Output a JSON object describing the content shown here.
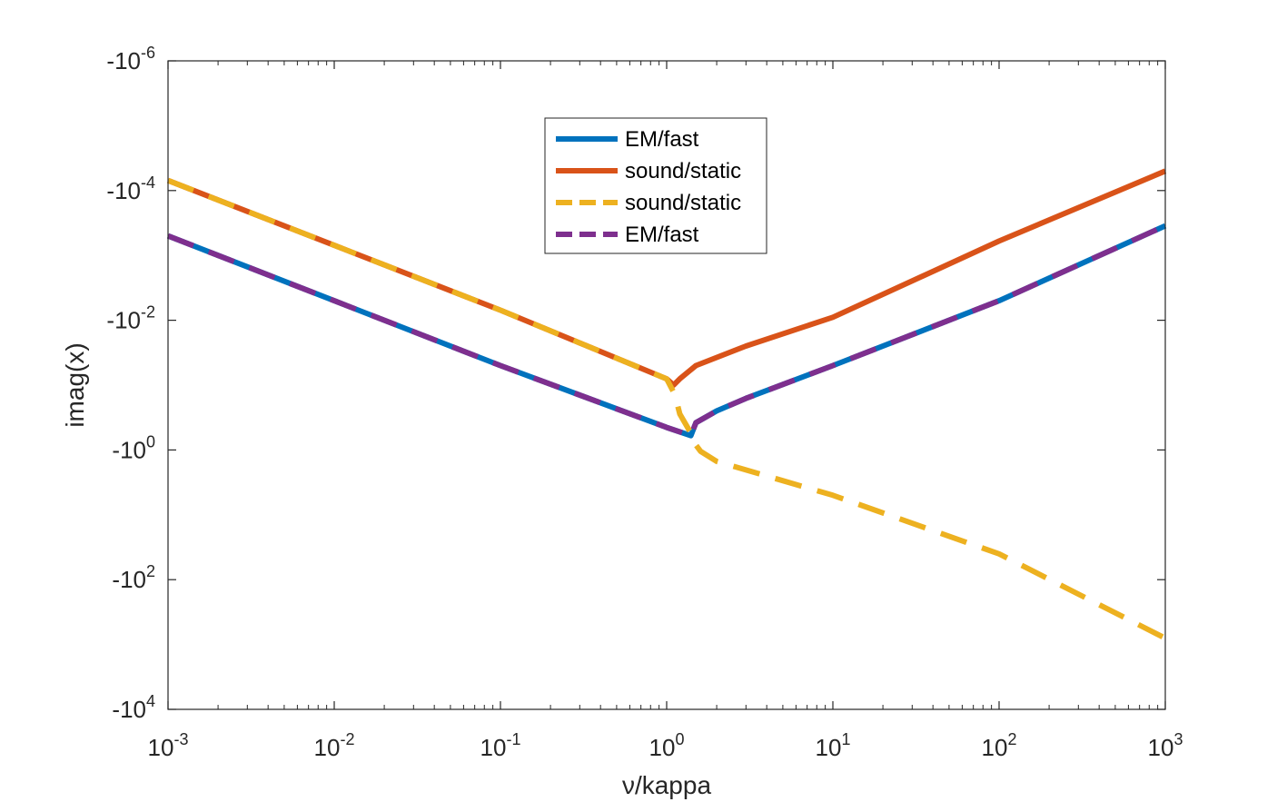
{
  "chart_data": {
    "type": "line",
    "title": "",
    "xlabel": "ν/kappa",
    "ylabel": "imag(x)",
    "xscale": "log",
    "yscale": "log-negative",
    "xlim": [
      0.001,
      1000
    ],
    "ylim": [
      -1e-06,
      -10000
    ],
    "x_ticks": [
      {
        "value": 0.001,
        "base": "10",
        "exp": "-3"
      },
      {
        "value": 0.01,
        "base": "10",
        "exp": "-2"
      },
      {
        "value": 0.1,
        "base": "10",
        "exp": "-1"
      },
      {
        "value": 1,
        "base": "10",
        "exp": "0"
      },
      {
        "value": 10,
        "base": "10",
        "exp": "1"
      },
      {
        "value": 100,
        "base": "10",
        "exp": "2"
      },
      {
        "value": 1000,
        "base": "10",
        "exp": "3"
      }
    ],
    "y_ticks": [
      {
        "value": -1e-06,
        "base": "-10",
        "exp": "-6"
      },
      {
        "value": -0.0001,
        "base": "-10",
        "exp": "-4"
      },
      {
        "value": -0.01,
        "base": "-10",
        "exp": "-2"
      },
      {
        "value": -1,
        "base": "-10",
        "exp": "0"
      },
      {
        "value": -100,
        "base": "-10",
        "exp": "2"
      },
      {
        "value": -10000,
        "base": "-10",
        "exp": "4"
      }
    ],
    "legend_position": "top-center",
    "series": [
      {
        "name": "EM/fast",
        "color": "#0072BD",
        "style": "solid",
        "x": [
          0.001,
          0.01,
          0.1,
          1.0,
          1.4,
          1.5,
          2.0,
          3.0,
          10,
          100,
          1000
        ],
        "y": [
          -0.0005,
          -0.005,
          -0.05,
          -0.45,
          -0.6,
          -0.38,
          -0.25,
          -0.16,
          -0.05,
          -0.005,
          -0.00035
        ]
      },
      {
        "name": "sound/static",
        "color": "#D95319",
        "style": "solid",
        "x": [
          0.001,
          0.01,
          0.1,
          1.0,
          1.1,
          1.2,
          1.5,
          3.0,
          10,
          100,
          1000
        ],
        "y": [
          -7e-05,
          -0.0007,
          -0.007,
          -0.08,
          -0.1,
          -0.08,
          -0.05,
          -0.025,
          -0.009,
          -0.0006,
          -5e-05
        ]
      },
      {
        "name": "sound/static",
        "color": "#EDB120",
        "style": "dashed",
        "x": [
          0.001,
          0.01,
          0.1,
          1.0,
          1.12,
          1.2,
          1.4,
          1.45,
          1.6,
          2.0,
          10,
          100,
          1000
        ],
        "y": [
          -7e-05,
          -0.0007,
          -0.007,
          -0.08,
          -0.14,
          -0.28,
          -0.55,
          -0.75,
          -1.05,
          -1.5,
          -5,
          -40,
          -800
        ]
      },
      {
        "name": "EM/fast",
        "color": "#7E2F8E",
        "style": "dashed",
        "x": [
          0.001,
          0.01,
          0.1,
          1.0,
          1.4,
          1.5,
          2.0,
          3.0,
          10,
          100,
          1000
        ],
        "y": [
          -0.0005,
          -0.005,
          -0.05,
          -0.45,
          -0.6,
          -0.38,
          -0.25,
          -0.16,
          -0.05,
          -0.005,
          -0.00035
        ]
      }
    ]
  }
}
